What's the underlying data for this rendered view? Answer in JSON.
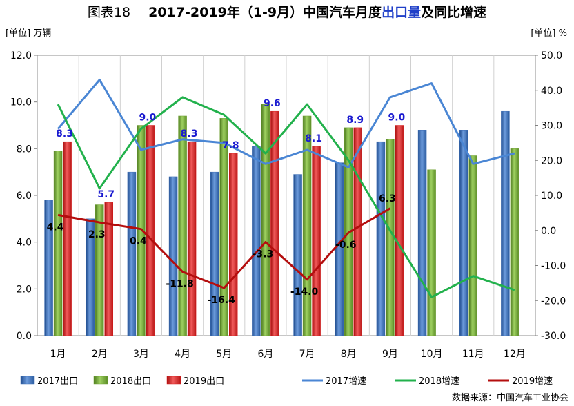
{
  "header": {
    "fig_label": "图表18",
    "title_main": "2017-2019年（1-9月）中国汽车月度",
    "title_highlight": "出口量",
    "title_tail": "及同比增速"
  },
  "chart_data": {
    "type": "bar",
    "categories": [
      "1月",
      "2月",
      "3月",
      "4月",
      "5月",
      "6月",
      "7月",
      "8月",
      "9月",
      "10月",
      "11月",
      "12月"
    ],
    "bar_series": [
      {
        "name": "2017出口",
        "color": "#3d6eb5",
        "values": [
          5.8,
          5.0,
          7.0,
          6.8,
          7.0,
          8.1,
          6.9,
          7.4,
          8.3,
          8.8,
          8.8,
          9.6
        ]
      },
      {
        "name": "2018出口",
        "color": "#70a033",
        "values": [
          7.9,
          5.6,
          9.0,
          9.4,
          9.3,
          9.9,
          9.4,
          8.9,
          8.4,
          7.1,
          7.7,
          8.0
        ]
      },
      {
        "name": "2019出口",
        "color": "#d81e1e",
        "values": [
          8.3,
          5.7,
          9.0,
          8.3,
          7.8,
          9.6,
          8.1,
          8.9,
          9.0,
          null,
          null,
          null
        ]
      }
    ],
    "line_series": [
      {
        "name": "2017增速",
        "color": "#4a86d4",
        "values": [
          29,
          43,
          23,
          26,
          25,
          19,
          23,
          18,
          38,
          42,
          19,
          22
        ]
      },
      {
        "name": "2018增速",
        "color": "#22b14c",
        "values": [
          36,
          12,
          29,
          38,
          33,
          22,
          36,
          20,
          0,
          -19,
          -13,
          -17
        ]
      },
      {
        "name": "2019增速",
        "color": "#b40e0e",
        "values": [
          4.4,
          2.3,
          0.4,
          -11.8,
          -16.4,
          -3.3,
          -14.0,
          -0.6,
          6.3,
          null,
          null,
          null
        ]
      }
    ],
    "bar_labels_2019": [
      "8.3",
      "5.7",
      "9.0",
      "8.3",
      "7.8",
      "9.6",
      "8.1",
      "8.9",
      "9.0"
    ],
    "line_labels_2019": [
      "4.4",
      "2.3",
      "0.4",
      "-11.8",
      "-16.4",
      "-3.3",
      "-14.0",
      "-0.6",
      "6.3"
    ],
    "left_axis": {
      "label": "[单位] 万辆",
      "ylim": [
        0,
        12
      ],
      "ticks": [
        "0.0",
        "2.0",
        "4.0",
        "6.0",
        "8.0",
        "10.0",
        "12.0"
      ]
    },
    "right_axis": {
      "label": "[单位] %",
      "ylim": [
        -30,
        50
      ],
      "ticks": [
        "-30.0",
        "-20.0",
        "-10.0",
        "0.0",
        "10.0",
        "20.0",
        "30.0",
        "40.0",
        "50.0"
      ]
    },
    "grid": "vertical category lines",
    "legend_position": "bottom"
  },
  "source": "数据来源：中国汽车工业协会"
}
